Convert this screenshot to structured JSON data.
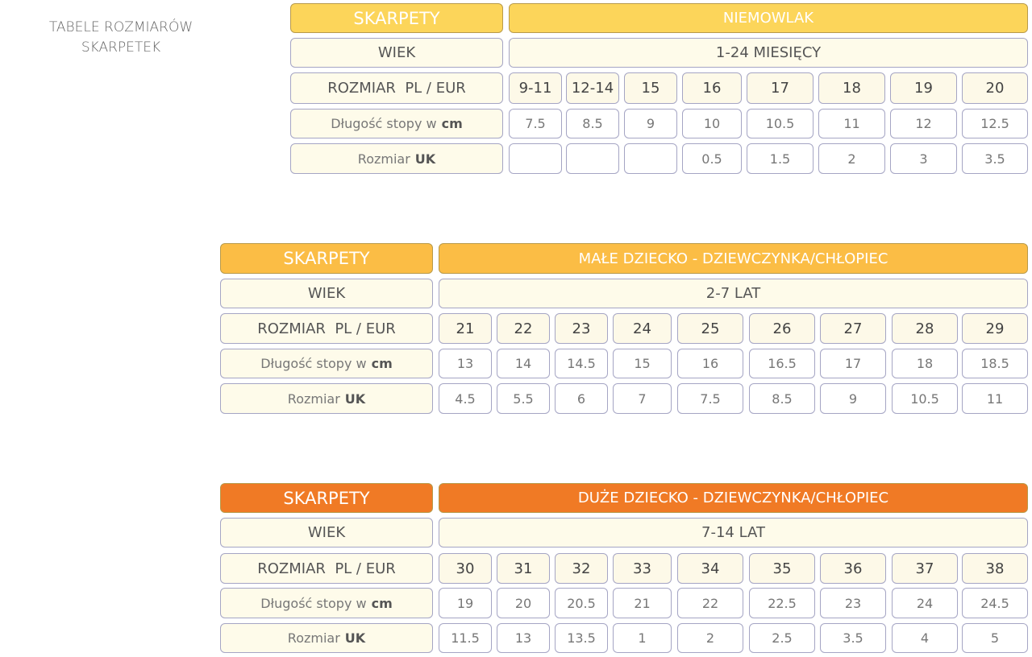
{
  "title": "TABELE ROZMIARÓW SKARPETEK",
  "labels": {
    "skarpety": "SKARPETY",
    "wiek": "WIEK",
    "rozmiar": "ROZMIAR  PL / EUR",
    "dlugosc": "Długość stopy w",
    "cm": "cm",
    "uk_prefix": "Rozmiar",
    "uk": "UK"
  },
  "tables": [
    {
      "category": "NIEMOWLAK",
      "age": "1-24 MIESIĘCY",
      "color": "#fcd55a",
      "sizes": [
        "9-11",
        "12-14",
        "15",
        "16",
        "17",
        "18",
        "19",
        "20"
      ],
      "cm": [
        "7.5",
        "8.5",
        "9",
        "10",
        "10.5",
        "11",
        "12",
        "12.5"
      ],
      "uk": [
        "",
        "",
        "",
        "0.5",
        "1.5",
        "2",
        "3",
        "3.5"
      ]
    },
    {
      "category": "MAŁE DZIECKO - DZIEWCZYNKA/CHŁOPIEC",
      "age": "2-7 LAT",
      "color": "#fbbd45",
      "sizes": [
        "21",
        "22",
        "23",
        "24",
        "25",
        "26",
        "27",
        "28",
        "29"
      ],
      "cm": [
        "13",
        "14",
        "14.5",
        "15",
        "16",
        "16.5",
        "17",
        "18",
        "18.5"
      ],
      "uk": [
        "4.5",
        "5.5",
        "6",
        "7",
        "7.5",
        "8.5",
        "9",
        "10.5",
        "11"
      ]
    },
    {
      "category": "DUŻE DZIECKO - DZIEWCZYNKA/CHŁOPIEC",
      "age": "7-14 LAT",
      "color": "#f07a25",
      "sizes": [
        "30",
        "31",
        "32",
        "33",
        "34",
        "35",
        "36",
        "37",
        "38"
      ],
      "cm": [
        "19",
        "20",
        "20.5",
        "21",
        "22",
        "22.5",
        "23",
        "24",
        "24.5"
      ],
      "uk": [
        "11.5",
        "13",
        "13.5",
        "1",
        "2",
        "2.5",
        "3.5",
        "4",
        "5"
      ]
    }
  ]
}
